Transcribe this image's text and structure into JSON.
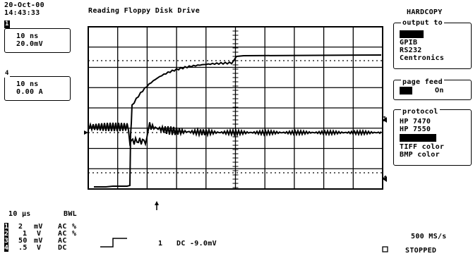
{
  "header": {
    "date": "20-Oct-00",
    "time": "14:43:33",
    "title": "Reading Floppy Disk Drive"
  },
  "channel_boxes": [
    {
      "marker": "1",
      "timebase": "10 ns",
      "value": "20.0mV"
    },
    {
      "marker": "4",
      "timebase": "10 ns",
      "value": "0.00 A"
    }
  ],
  "hardcopy": {
    "title": "HARDCOPY",
    "output_to": {
      "label": "output to",
      "options": [
        "",
        "GPIB",
        "RS232",
        "Centronics"
      ]
    },
    "page_feed": {
      "label": "page feed",
      "value": "On"
    },
    "protocol": {
      "label": "protocol",
      "options": [
        "HP 7470",
        "HP 7550",
        "",
        "TIFF color",
        "BMP color"
      ]
    }
  },
  "right_markers": {
    "ch1": "1",
    "ch4": "4"
  },
  "bottom": {
    "timebase": "10 μs",
    "bwl": "BWL",
    "channels": [
      {
        "num": "1",
        "volts": "2",
        "unit": "mV",
        "coupling": "AC",
        "extra": "%"
      },
      {
        "num": "2",
        "volts": "1",
        "unit": "V",
        "coupling": "AC",
        "extra": "%"
      },
      {
        "num": "3",
        "volts": "50",
        "unit": "mV",
        "coupling": "AC",
        "extra": ""
      },
      {
        "num": "4",
        "volts": ".5",
        "unit": "V",
        "coupling": "DC",
        "extra": ""
      }
    ],
    "trigger_channel": "1",
    "trigger_level": "DC -9.0mV",
    "sample_rate": "500 MS/s",
    "status": "STOPPED"
  }
}
